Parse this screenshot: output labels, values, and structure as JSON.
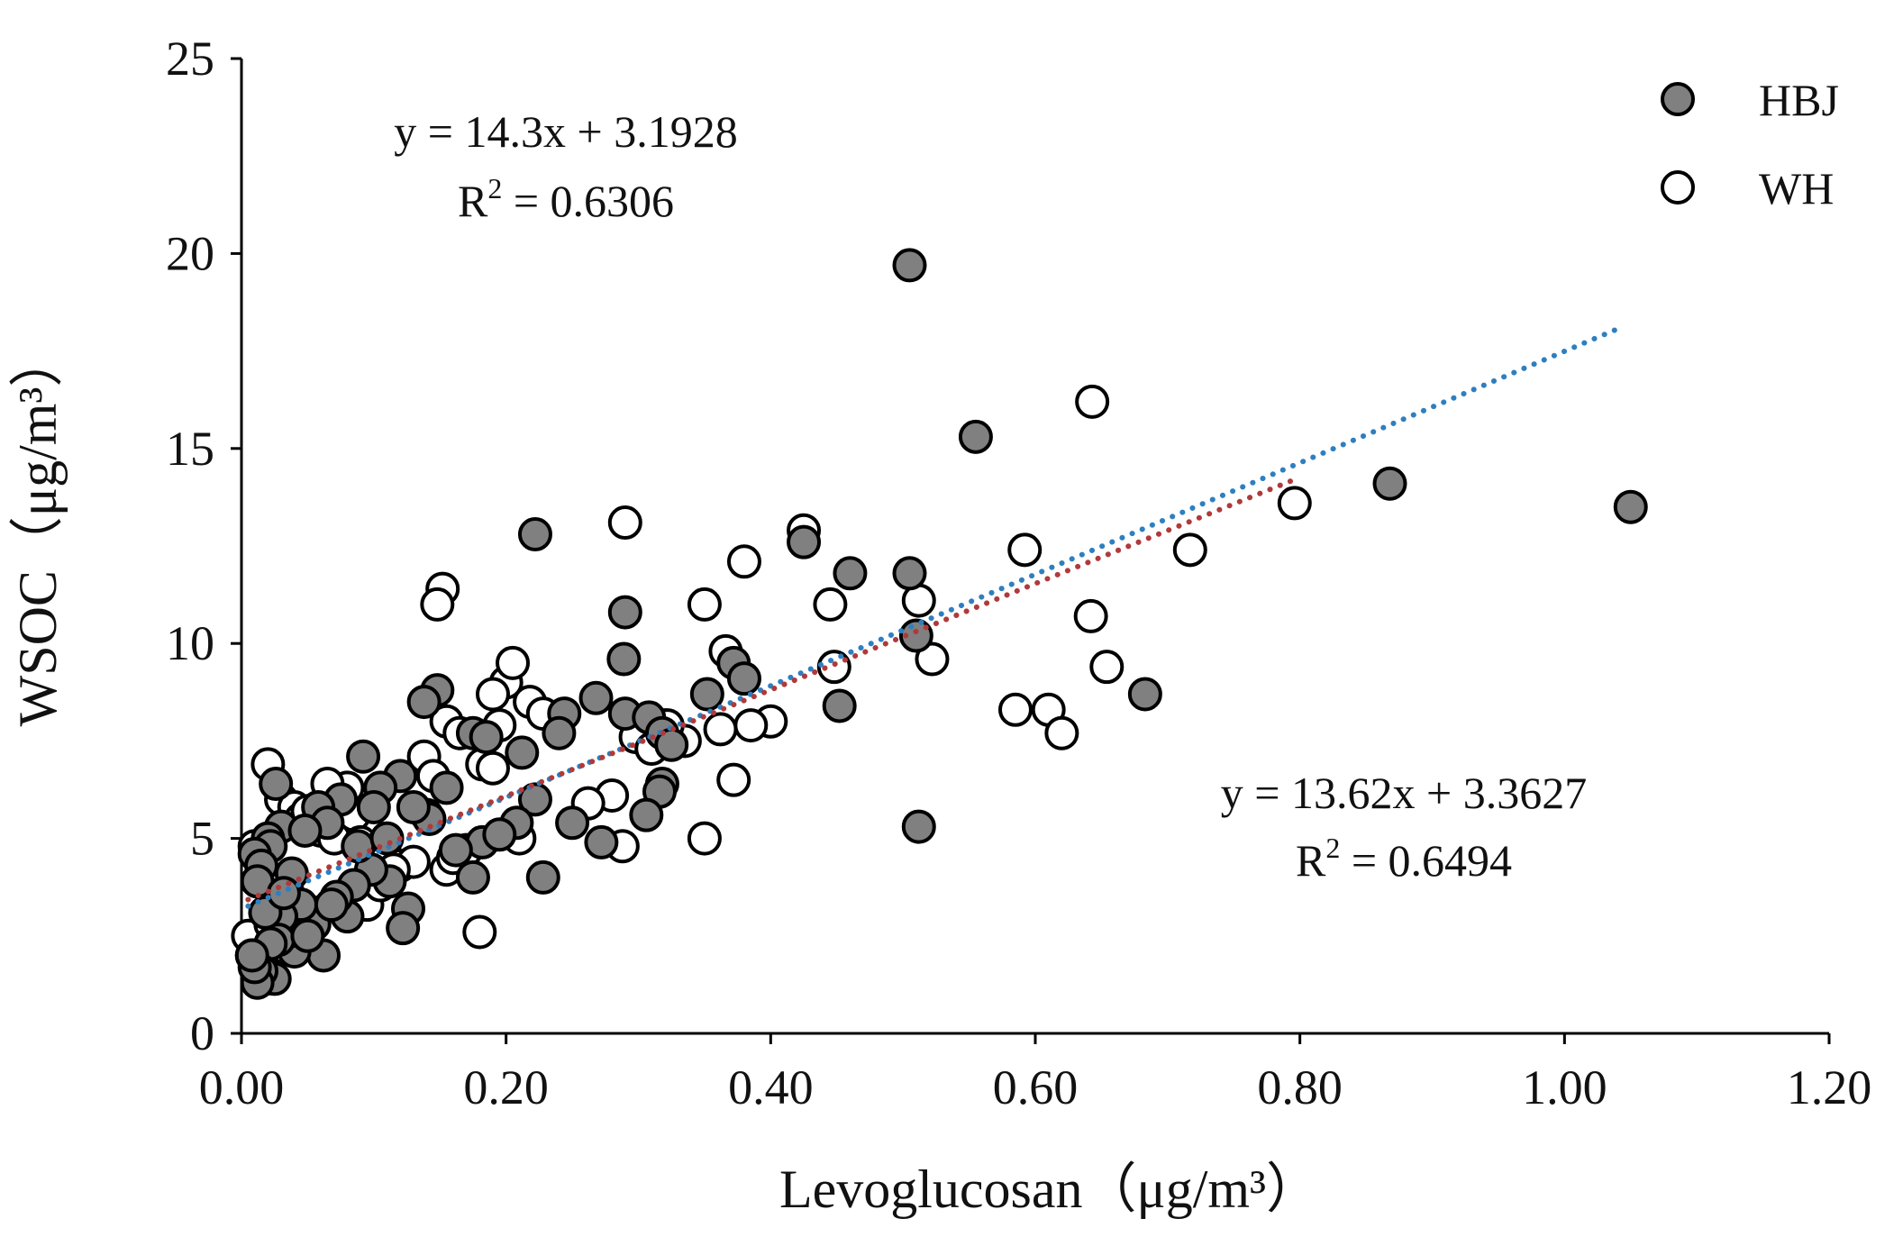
{
  "chart_data": {
    "type": "scatter",
    "xlabel": "Levoglucosan（μg/m³）",
    "ylabel": "WSOC（μg/m³）",
    "xlim": [
      0,
      1.2
    ],
    "ylim": [
      0,
      25
    ],
    "xticks": [
      "0.00",
      "0.20",
      "0.40",
      "0.60",
      "0.80",
      "1.00",
      "1.20"
    ],
    "xtick_values": [
      0,
      0.2,
      0.4,
      0.6,
      0.8,
      1.0,
      1.2
    ],
    "yticks": [
      "0",
      "5",
      "10",
      "15",
      "20",
      "25"
    ],
    "ytick_values": [
      0,
      5,
      10,
      15,
      20,
      25
    ],
    "grid": false,
    "legend_position": "top-right",
    "series": [
      {
        "name": "HBJ",
        "marker": "filled-circle",
        "fill": "#808080",
        "stroke": "#000000",
        "x": [
          0.505,
          0.555,
          0.868,
          1.05,
          0.222,
          0.425,
          0.46,
          0.505,
          0.51,
          0.29,
          0.289,
          0.372,
          0.38,
          0.352,
          0.452,
          0.683,
          0.512,
          0.148,
          0.138,
          0.268,
          0.244,
          0.29,
          0.308,
          0.318,
          0.325,
          0.222,
          0.212,
          0.175,
          0.185,
          0.092,
          0.12,
          0.105,
          0.075,
          0.058,
          0.065,
          0.026,
          0.03,
          0.02,
          0.048,
          0.022,
          0.01,
          0.015,
          0.012,
          0.038,
          0.1,
          0.318,
          0.316,
          0.306,
          0.25,
          0.272,
          0.228,
          0.208,
          0.182,
          0.175,
          0.162,
          0.142,
          0.126,
          0.122,
          0.112,
          0.098,
          0.085,
          0.08,
          0.072,
          0.062,
          0.055,
          0.045,
          0.04,
          0.035,
          0.03,
          0.028,
          0.025,
          0.022,
          0.018,
          0.015,
          0.012,
          0.01,
          0.008,
          0.032,
          0.05,
          0.068,
          0.088,
          0.11,
          0.13,
          0.155,
          0.195,
          0.24
        ],
        "y": [
          19.7,
          15.3,
          14.1,
          13.5,
          12.8,
          12.6,
          11.8,
          11.8,
          10.2,
          10.8,
          9.6,
          9.5,
          9.1,
          8.7,
          8.4,
          8.7,
          5.3,
          8.8,
          8.5,
          8.6,
          8.2,
          8.2,
          8.1,
          7.7,
          7.4,
          6.0,
          7.2,
          7.7,
          7.6,
          7.1,
          6.6,
          6.3,
          6.0,
          5.8,
          5.4,
          6.4,
          5.3,
          5.0,
          5.2,
          4.8,
          4.6,
          4.3,
          3.9,
          4.1,
          5.8,
          6.4,
          6.2,
          5.6,
          5.4,
          4.9,
          4.0,
          5.4,
          4.9,
          4.0,
          4.7,
          5.5,
          3.2,
          2.7,
          3.9,
          4.2,
          3.8,
          3.0,
          3.5,
          2.0,
          2.8,
          3.3,
          2.1,
          2.6,
          3.0,
          2.4,
          1.4,
          2.3,
          3.1,
          1.6,
          1.3,
          1.7,
          2.0,
          3.6,
          2.5,
          3.3,
          4.8,
          5.0,
          5.8,
          6.3,
          5.1,
          7.7
        ]
      },
      {
        "name": "WH",
        "marker": "open-circle",
        "fill": "#ffffff",
        "stroke": "#000000",
        "x": [
          0.643,
          0.29,
          0.425,
          0.38,
          0.592,
          0.796,
          0.717,
          0.35,
          0.445,
          0.512,
          0.642,
          0.152,
          0.148,
          0.366,
          0.522,
          0.448,
          0.654,
          0.585,
          0.61,
          0.62,
          0.4,
          0.385,
          0.362,
          0.372,
          0.35,
          0.288,
          0.28,
          0.262,
          0.2,
          0.205,
          0.19,
          0.195,
          0.218,
          0.228,
          0.155,
          0.165,
          0.138,
          0.182,
          0.21,
          0.155,
          0.145,
          0.08,
          0.065,
          0.085,
          0.02,
          0.03,
          0.04,
          0.045,
          0.05,
          0.06,
          0.07,
          0.09,
          0.1,
          0.11,
          0.12,
          0.13,
          0.14,
          0.01,
          0.015,
          0.012,
          0.025,
          0.035,
          0.055,
          0.075,
          0.095,
          0.105,
          0.115,
          0.16,
          0.17,
          0.19,
          0.005,
          0.008,
          0.018,
          0.022,
          0.028,
          0.033,
          0.038,
          0.32,
          0.335,
          0.298,
          0.31,
          0.322,
          0.18
        ],
        "y": [
          16.2,
          13.1,
          12.9,
          12.1,
          12.4,
          13.6,
          12.4,
          11.0,
          11.0,
          11.1,
          10.7,
          11.4,
          11.0,
          9.8,
          9.6,
          9.4,
          9.4,
          8.3,
          8.3,
          7.7,
          8.0,
          7.9,
          7.8,
          6.5,
          5.0,
          4.8,
          6.1,
          5.9,
          9.0,
          9.5,
          8.7,
          7.9,
          8.5,
          8.2,
          8.0,
          7.7,
          7.1,
          6.9,
          5.0,
          4.2,
          6.6,
          6.3,
          6.4,
          5.6,
          6.9,
          6.0,
          5.8,
          5.5,
          5.7,
          5.2,
          5.0,
          4.9,
          4.7,
          4.5,
          4.3,
          4.4,
          5.6,
          4.8,
          4.5,
          3.9,
          3.4,
          3.6,
          3.1,
          3.5,
          3.3,
          3.8,
          4.2,
          4.5,
          4.7,
          6.8,
          2.5,
          2.0,
          1.4,
          2.8,
          3.0,
          2.2,
          2.4,
          7.9,
          7.5,
          7.6,
          7.3,
          7.9,
          2.6
        ]
      }
    ],
    "trendlines": [
      {
        "series": "HBJ",
        "slope": 14.3,
        "intercept": 3.1928,
        "x_range": [
          0.005,
          1.04
        ],
        "color": "#2e7fc0",
        "style": "dotted"
      },
      {
        "series": "WH",
        "slope": 13.62,
        "intercept": 3.3627,
        "x_range": [
          0.005,
          0.8
        ],
        "color": "#b03a3a",
        "style": "dotted"
      }
    ],
    "annotations": [
      {
        "id": "eq-hbj",
        "equation": "y = 14.3x + 3.1928",
        "r2_label": "R",
        "r2_sup": "2",
        "r2_value": " = 0.6306"
      },
      {
        "id": "eq-wh",
        "equation": "y = 13.62x + 3.3627",
        "r2_label": "R",
        "r2_sup": "2",
        "r2_value": " = 0.6494"
      }
    ]
  }
}
